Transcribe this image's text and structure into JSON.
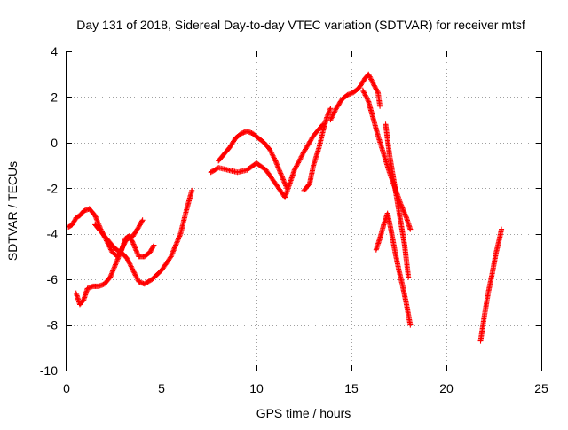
{
  "chart_data": {
    "type": "scatter",
    "title": "Day 131 of 2018, Sidereal Day-to-day VTEC variation (SDTVAR) for receiver mtsf",
    "xlabel": "GPS time / hours",
    "ylabel": "SDTVAR / TECUs",
    "xlim": [
      0,
      25
    ],
    "ylim": [
      -10,
      4
    ],
    "x_ticks": [
      0,
      5,
      10,
      15,
      20,
      25
    ],
    "y_ticks": [
      -10,
      -8,
      -6,
      -4,
      -2,
      0,
      2,
      4
    ],
    "x_tick_labels": [
      "0",
      "5",
      "10",
      "15",
      "20",
      "25"
    ],
    "y_tick_labels": [
      "-10",
      "-8",
      "-6",
      "-4",
      "-2",
      "0",
      "2",
      "4"
    ],
    "grid": true,
    "legend": "none",
    "marker": "+",
    "color": "#ff0000",
    "series": [
      {
        "x": [
          0.1,
          0.3,
          0.5,
          0.7,
          0.9,
          1.2,
          1.5,
          1.8,
          2.1,
          2.4,
          2.7,
          2.9,
          3.1,
          3.3,
          3.5,
          3.8,
          4.1,
          4.4,
          4.6
        ],
        "y": [
          -3.7,
          -3.6,
          -3.3,
          -3.2,
          -3.0,
          -2.9,
          -3.2,
          -3.8,
          -4.3,
          -4.8,
          -5.0,
          -4.7,
          -4.2,
          -4.1,
          -4.4,
          -5.0,
          -5.0,
          -4.8,
          -4.5
        ]
      },
      {
        "x": [
          0.5,
          0.7,
          0.9,
          1.1,
          1.4,
          1.7,
          2.0,
          2.3,
          2.6,
          2.8,
          3.0,
          3.2,
          3.5,
          3.8,
          4.0
        ],
        "y": [
          -6.6,
          -7.1,
          -6.9,
          -6.4,
          -6.3,
          -6.3,
          -6.2,
          -5.9,
          -5.3,
          -4.9,
          -4.5,
          -4.2,
          -4.1,
          -3.7,
          -3.4
        ]
      },
      {
        "x": [
          1.5,
          2.0,
          2.5,
          2.8,
          3.0,
          3.2,
          3.5,
          3.8,
          4.1,
          4.5,
          5.0,
          5.5,
          6.0,
          6.3,
          6.6
        ],
        "y": [
          -3.6,
          -4.1,
          -4.6,
          -4.8,
          -4.9,
          -5.1,
          -5.6,
          -6.1,
          -6.2,
          -6.0,
          -5.6,
          -5.0,
          -4.0,
          -3.0,
          -2.1
        ]
      },
      {
        "x": [
          7.6,
          8.0,
          8.5,
          9.0,
          9.5,
          10.0,
          10.5,
          11.0,
          11.5,
          12.0,
          12.5,
          13.0,
          13.5
        ],
        "y": [
          -1.3,
          -1.1,
          -1.2,
          -1.3,
          -1.2,
          -0.9,
          -1.2,
          -1.8,
          -2.4,
          -1.2,
          -0.4,
          0.3,
          0.8
        ]
      },
      {
        "x": [
          8.0,
          8.3,
          8.6,
          8.9,
          9.2,
          9.5,
          9.8,
          10.1,
          10.4,
          10.7,
          11.0,
          11.3,
          11.6
        ],
        "y": [
          -0.8,
          -0.5,
          -0.2,
          0.2,
          0.4,
          0.5,
          0.4,
          0.2,
          0.0,
          -0.3,
          -0.8,
          -1.4,
          -2.0
        ]
      },
      {
        "x": [
          12.5,
          12.8,
          13.0,
          13.3,
          13.5,
          13.7,
          13.9
        ],
        "y": [
          -2.1,
          -1.8,
          -1.0,
          -0.2,
          0.5,
          1.1,
          1.5
        ]
      },
      {
        "x": [
          13.9,
          14.2,
          14.5,
          14.8,
          15.1,
          15.4,
          15.7,
          15.9,
          16.2,
          16.4,
          16.5
        ],
        "y": [
          1.0,
          1.5,
          1.9,
          2.1,
          2.2,
          2.4,
          2.8,
          3.0,
          2.5,
          2.2,
          1.6
        ]
      },
      {
        "x": [
          15.6,
          15.9,
          16.1,
          16.4,
          16.7,
          17.0,
          17.3,
          17.6,
          17.9,
          18.1
        ],
        "y": [
          2.3,
          1.8,
          1.2,
          0.3,
          -0.5,
          -1.3,
          -2.0,
          -2.7,
          -3.3,
          -3.8
        ]
      },
      {
        "x": [
          16.8,
          17.0,
          17.2,
          17.4,
          17.6,
          17.8,
          18.0
        ],
        "y": [
          0.8,
          -0.5,
          -1.5,
          -2.5,
          -3.5,
          -4.5,
          -5.9
        ]
      },
      {
        "x": [
          16.3,
          16.5,
          16.7,
          16.9,
          17.1,
          17.3,
          17.5,
          17.7,
          17.9,
          18.1
        ],
        "y": [
          -4.7,
          -4.2,
          -3.6,
          -3.1,
          -3.9,
          -4.8,
          -5.6,
          -6.3,
          -7.1,
          -8.0
        ]
      },
      {
        "x": [
          21.8,
          22.0,
          22.2,
          22.4,
          22.6,
          22.8,
          22.9
        ],
        "y": [
          -8.7,
          -7.6,
          -6.6,
          -5.8,
          -4.9,
          -4.2,
          -3.8
        ]
      }
    ]
  }
}
